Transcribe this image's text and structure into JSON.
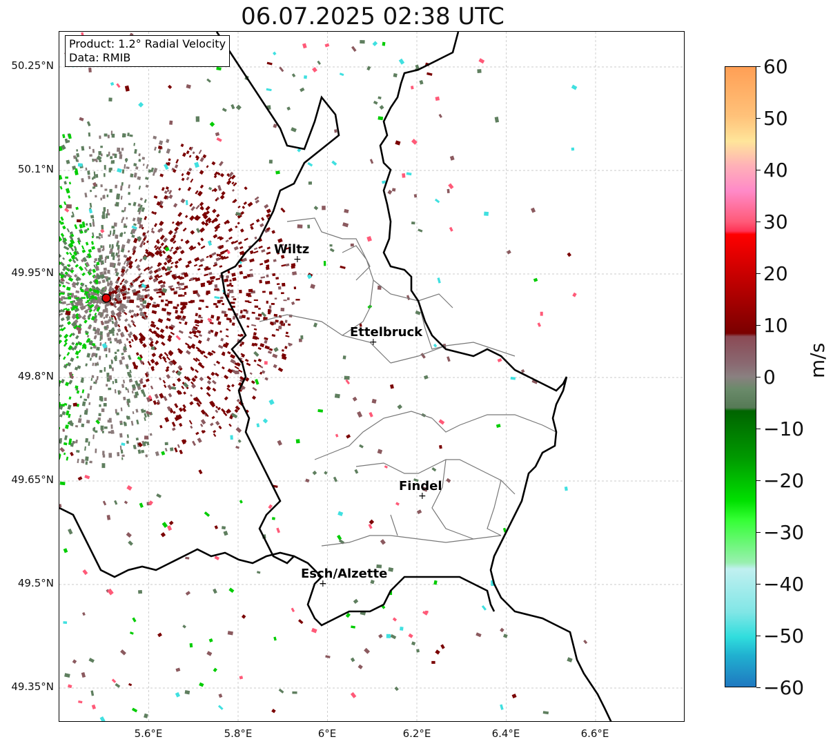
{
  "title": "06.07.2025 02:38 UTC",
  "info": {
    "product": "Product: 1.2° Radial Velocity",
    "source": "Data: RMIB"
  },
  "axes": {
    "y_labels": [
      "50.25°N",
      "50.1°N",
      "49.95°N",
      "49.8°N",
      "49.65°N",
      "49.5°N",
      "49.35°N"
    ],
    "x_labels": [
      "5.6°E",
      "5.8°E",
      "6°E",
      "6.2°E",
      "6.4°E",
      "6.6°E"
    ]
  },
  "colorbar": {
    "unit": "m/s",
    "ticks": [
      "60",
      "50",
      "40",
      "30",
      "20",
      "10",
      "0",
      "−10",
      "−20",
      "−30",
      "−40",
      "−50",
      "−60"
    ],
    "range": [
      -60,
      60
    ]
  },
  "cities": [
    {
      "name": "Wiltz",
      "lon": 5.93,
      "lat": 49.97
    },
    {
      "name": "Ettelbruck",
      "lon": 6.1,
      "lat": 49.85
    },
    {
      "name": "Findel",
      "lon": 6.21,
      "lat": 49.63
    },
    {
      "name": "Esch/Alzette",
      "lon": 5.99,
      "lat": 49.5
    }
  ],
  "radar_site": {
    "lon": 5.505,
    "lat": 49.915
  },
  "colors": {
    "approach_strong": "#00cc00",
    "approach_weak": "#5f7f5f",
    "zero": "#8a7a7a",
    "recede_weak": "#8b5a5f",
    "recede_strong": "#7a0000",
    "radar_dot": "#dd0000"
  }
}
